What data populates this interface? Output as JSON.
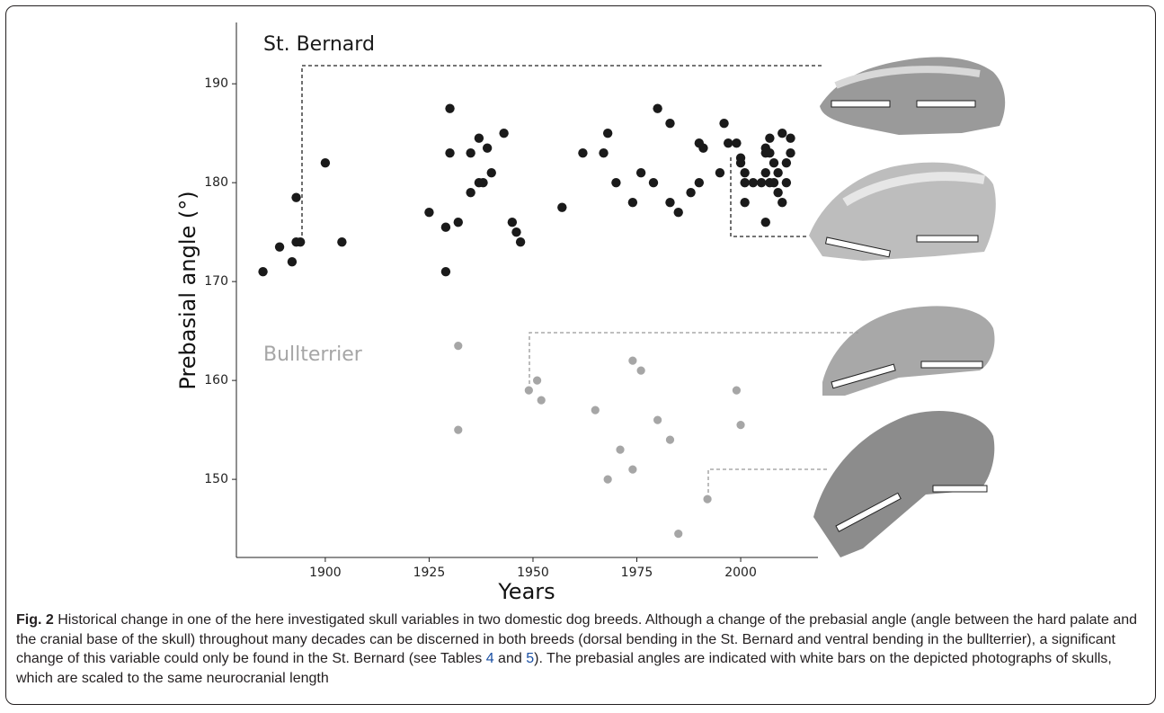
{
  "chart_data": {
    "type": "scatter",
    "xlabel": "Years",
    "ylabel": "Prebasial angle (°)",
    "xlim": [
      1878.6,
      2018.6
    ],
    "ylim": [
      142.1,
      196.2
    ],
    "xticks": [
      1900,
      1925,
      1950,
      1975,
      2000
    ],
    "yticks": [
      150,
      160,
      170,
      180,
      190
    ],
    "grid": false,
    "series": [
      {
        "name": "St. Bernard",
        "color": "#1a1a1a",
        "x": [
          1885,
          1889,
          1892,
          1893,
          1893,
          1894,
          1900,
          1904,
          1925,
          1929,
          1929,
          1930,
          1930,
          1932,
          1935,
          1935,
          1937,
          1937,
          1938,
          1939,
          1940,
          1943,
          1945,
          1946,
          1947,
          1957,
          1962,
          1967,
          1968,
          1970,
          1974,
          1976,
          1979,
          1980,
          1983,
          1983,
          1985,
          1988,
          1990,
          1990,
          1991,
          1995,
          1996,
          1997,
          1999,
          2000,
          2000,
          2001,
          2001,
          2001,
          2003,
          2005,
          2006,
          2006,
          2006,
          2006,
          2007,
          2007,
          2007,
          2008,
          2008,
          2009,
          2009,
          2010,
          2010,
          2011,
          2011,
          2012,
          2012
        ],
        "values": [
          171,
          173.5,
          172,
          178.5,
          174,
          174,
          182,
          174,
          177,
          175.5,
          171,
          187.5,
          183,
          176,
          183,
          179,
          184.5,
          180,
          180,
          183.5,
          181,
          185,
          176,
          175,
          174,
          177.5,
          183,
          183,
          185,
          180,
          178,
          181,
          180,
          187.5,
          186,
          178,
          177,
          179,
          180,
          184,
          183.5,
          181,
          186,
          184,
          184,
          182.5,
          182,
          181,
          180,
          178,
          180,
          180,
          183.5,
          183,
          181,
          176,
          184.5,
          183,
          180,
          182,
          180,
          181,
          179,
          185,
          178,
          180,
          182,
          184.5,
          183
        ]
      },
      {
        "name": "Bullterrier",
        "color": "#a6a6a6",
        "x": [
          1932,
          1932,
          1949,
          1951,
          1952,
          1965,
          1968,
          1971,
          1974,
          1974,
          1976,
          1980,
          1983,
          1985,
          1992,
          1999,
          2000
        ],
        "values": [
          163.5,
          155,
          159,
          160,
          158,
          157,
          150,
          153,
          162,
          151,
          161,
          156,
          154,
          144.5,
          148,
          159,
          155.5
        ]
      }
    ]
  },
  "caption": {
    "label": "Fig. 2",
    "text": " Historical change in one of the here investigated skull variables in two domestic dog breeds. Although a change of the prebasial angle (angle between the hard palate and the cranial base of the skull) throughout many decades can be discerned in both breeds (dorsal bending in the St. Bernard and ventral bending in the bullterrier), a significant change of this variable could only be found in the St. Bernard (see Tables ",
    "refs": [
      "4",
      "5"
    ],
    "joiner": " and ",
    "end": "). The prebasial angles are indicated with white bars on the depicted photographs of skulls, which are scaled to the same neurocranial length"
  }
}
